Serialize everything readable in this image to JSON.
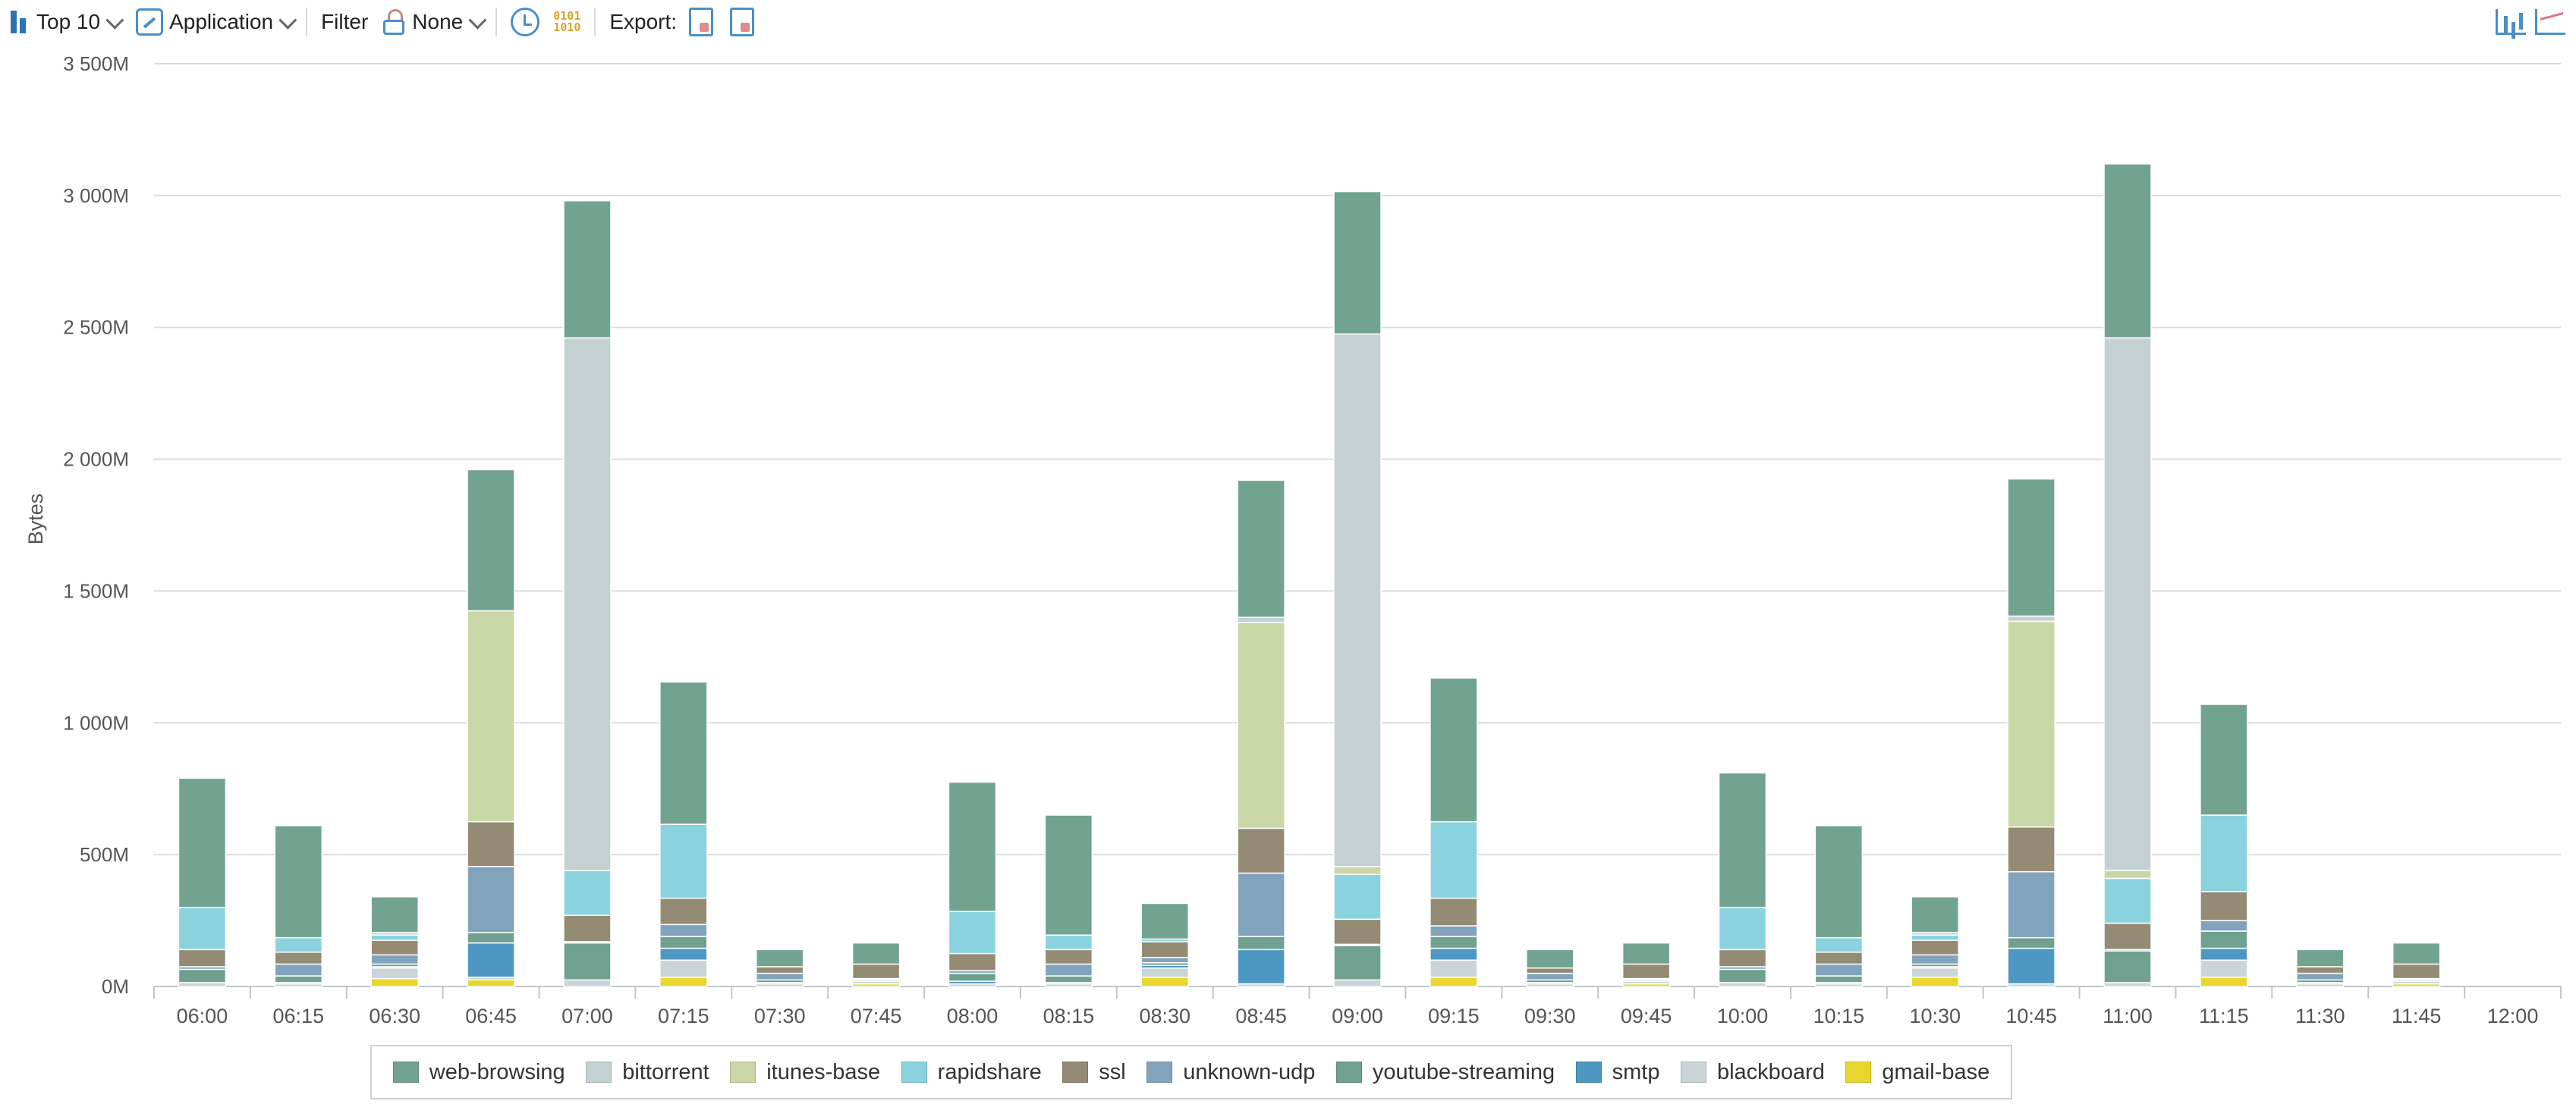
{
  "toolbar": {
    "top_label": "Top 10",
    "group_label": "Application",
    "filter_label": "Filter",
    "filter_value": "None",
    "export_label": "Export:"
  },
  "icons": {
    "top": "bar-chart-icon",
    "group": "application-icon",
    "filter": "lock-icon",
    "time": "clock-refresh-icon",
    "binary": "binary-icon",
    "export_csv": "export-csv-icon",
    "export_pdf": "export-pdf-icon",
    "view_bar": "bar-chart-view-icon",
    "view_line": "line-chart-view-icon"
  },
  "chart_data": {
    "type": "bar",
    "stacked": true,
    "ylabel": "Bytes",
    "xlabel": "",
    "ylim": [
      0,
      3500
    ],
    "y_unit": "M",
    "y_ticks": [
      0,
      500,
      1000,
      1500,
      2000,
      2500,
      3000,
      3500
    ],
    "y_tick_labels": [
      "0M",
      "500M",
      "1 000M",
      "1 500M",
      "2 000M",
      "2 500M",
      "3 000M",
      "3 500M"
    ],
    "grid": true,
    "legend_position": "bottom",
    "categories": [
      "06:00",
      "06:15",
      "06:30",
      "06:45",
      "07:00",
      "07:15",
      "07:30",
      "07:45",
      "08:00",
      "08:15",
      "08:30",
      "08:45",
      "09:00",
      "09:15",
      "09:30",
      "09:45",
      "10:00",
      "10:15",
      "10:30",
      "10:45",
      "11:00",
      "11:15",
      "11:30",
      "11:45",
      "12:00"
    ],
    "series": [
      {
        "name": "gmail-base",
        "color": "#e8d62c",
        "values": [
          0,
          0,
          30,
          25,
          0,
          35,
          0,
          10,
          0,
          0,
          35,
          0,
          0,
          35,
          0,
          10,
          0,
          0,
          35,
          0,
          0,
          35,
          0,
          10,
          0
        ]
      },
      {
        "name": "blackboard",
        "color": "#c9d5d6",
        "values": [
          15,
          10,
          40,
          10,
          25,
          65,
          10,
          10,
          10,
          10,
          35,
          10,
          25,
          65,
          10,
          10,
          15,
          10,
          35,
          10,
          15,
          65,
          10,
          10,
          0
        ]
      },
      {
        "name": "smtp",
        "color": "#4f97c3",
        "values": [
          0,
          5,
          5,
          130,
          0,
          45,
          5,
          0,
          10,
          5,
          10,
          130,
          0,
          45,
          5,
          0,
          0,
          5,
          5,
          135,
          0,
          45,
          5,
          0,
          0
        ]
      },
      {
        "name": "youtube-streaming",
        "color": "#6fa090",
        "values": [
          50,
          25,
          10,
          40,
          140,
          45,
          10,
          5,
          30,
          25,
          10,
          50,
          130,
          45,
          10,
          5,
          50,
          25,
          10,
          40,
          120,
          65,
          10,
          5,
          0
        ]
      },
      {
        "name": "unknown-udp",
        "color": "#81a3bc",
        "values": [
          10,
          45,
          35,
          250,
          5,
          45,
          25,
          5,
          10,
          45,
          20,
          240,
          5,
          40,
          25,
          5,
          10,
          45,
          35,
          250,
          5,
          40,
          25,
          5,
          0
        ]
      },
      {
        "name": "ssl",
        "color": "#948b74",
        "values": [
          65,
          45,
          55,
          170,
          100,
          100,
          25,
          55,
          65,
          55,
          60,
          170,
          95,
          105,
          20,
          55,
          65,
          45,
          55,
          170,
          100,
          110,
          25,
          55,
          0
        ]
      },
      {
        "name": "rapidshare",
        "color": "#8ad2de",
        "values": [
          160,
          55,
          20,
          0,
          170,
          280,
          0,
          0,
          160,
          55,
          10,
          0,
          170,
          290,
          0,
          0,
          160,
          55,
          20,
          0,
          170,
          290,
          0,
          0,
          0
        ]
      },
      {
        "name": "itunes-base",
        "color": "#c9d6a6",
        "values": [
          0,
          0,
          0,
          800,
          0,
          0,
          0,
          0,
          0,
          0,
          0,
          780,
          30,
          0,
          0,
          0,
          0,
          0,
          0,
          780,
          30,
          0,
          0,
          0,
          0
        ]
      },
      {
        "name": "bittorrent",
        "color": "#c3d1d3",
        "values": [
          0,
          0,
          10,
          0,
          2020,
          0,
          0,
          0,
          0,
          0,
          0,
          20,
          2020,
          0,
          0,
          0,
          0,
          0,
          10,
          20,
          2020,
          0,
          0,
          0,
          0
        ]
      },
      {
        "name": "web-browsing",
        "color": "#72a390",
        "values": [
          490,
          425,
          135,
          535,
          520,
          540,
          65,
          80,
          490,
          455,
          135,
          520,
          540,
          545,
          70,
          80,
          510,
          425,
          135,
          520,
          660,
          420,
          65,
          80,
          0
        ]
      }
    ]
  },
  "legend": [
    {
      "name": "web-browsing",
      "color": "#72a390"
    },
    {
      "name": "bittorrent",
      "color": "#c3d1d3"
    },
    {
      "name": "itunes-base",
      "color": "#c9d6a6"
    },
    {
      "name": "rapidshare",
      "color": "#8ad2de"
    },
    {
      "name": "ssl",
      "color": "#948b74"
    },
    {
      "name": "unknown-udp",
      "color": "#81a3bc"
    },
    {
      "name": "youtube-streaming",
      "color": "#6fa090"
    },
    {
      "name": "smtp",
      "color": "#4f97c3"
    },
    {
      "name": "blackboard",
      "color": "#c9d5d6"
    },
    {
      "name": "gmail-base",
      "color": "#e8d62c"
    }
  ]
}
